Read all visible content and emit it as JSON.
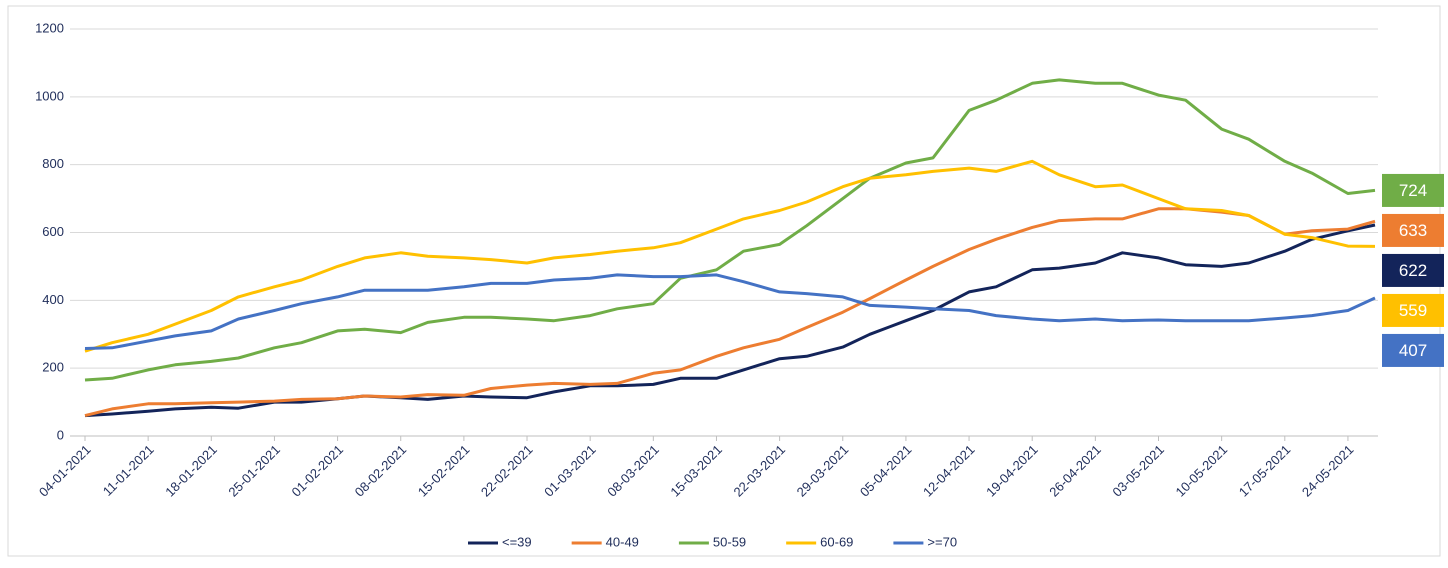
{
  "chart_data": {
    "type": "line",
    "x": [
      "04-01-2021",
      "07-01-2021",
      "11-01-2021",
      "14-01-2021",
      "18-01-2021",
      "21-01-2021",
      "25-01-2021",
      "28-01-2021",
      "01-02-2021",
      "04-02-2021",
      "08-02-2021",
      "11-02-2021",
      "15-02-2021",
      "18-02-2021",
      "22-02-2021",
      "25-02-2021",
      "01-03-2021",
      "04-03-2021",
      "08-03-2021",
      "11-03-2021",
      "15-03-2021",
      "18-03-2021",
      "22-03-2021",
      "25-03-2021",
      "29-03-2021",
      "01-04-2021",
      "05-04-2021",
      "08-04-2021",
      "12-04-2021",
      "15-04-2021",
      "19-04-2021",
      "22-04-2021",
      "26-04-2021",
      "29-04-2021",
      "03-05-2021",
      "06-05-2021",
      "10-05-2021",
      "13-05-2021",
      "17-05-2021",
      "20-05-2021",
      "24-05-2021",
      "27-05-2021"
    ],
    "series": [
      {
        "name": "<=39",
        "color": "#13245a",
        "values": [
          60,
          65,
          73,
          80,
          85,
          82,
          100,
          100,
          110,
          118,
          113,
          108,
          118,
          115,
          113,
          130,
          148,
          148,
          152,
          170,
          170,
          195,
          228,
          235,
          262,
          300,
          340,
          370,
          425,
          440,
          490,
          495,
          510,
          540,
          525,
          505,
          500,
          510,
          545,
          580,
          605,
          622
        ]
      },
      {
        "name": "40-49",
        "color": "#ed7d31",
        "values": [
          60,
          80,
          95,
          95,
          98,
          100,
          103,
          108,
          110,
          118,
          115,
          122,
          120,
          140,
          150,
          155,
          152,
          155,
          185,
          195,
          235,
          260,
          285,
          320,
          365,
          405,
          460,
          500,
          550,
          580,
          615,
          635,
          640,
          640,
          670,
          670,
          660,
          650,
          595,
          605,
          610,
          633
        ]
      },
      {
        "name": "50-59",
        "color": "#70ad47",
        "values": [
          165,
          170,
          195,
          210,
          220,
          230,
          260,
          275,
          310,
          315,
          305,
          335,
          350,
          350,
          345,
          340,
          355,
          375,
          390,
          465,
          490,
          545,
          565,
          620,
          700,
          760,
          805,
          820,
          960,
          990,
          1040,
          1050,
          1040,
          1040,
          1005,
          990,
          905,
          875,
          810,
          775,
          715,
          724
        ]
      },
      {
        "name": "60-69",
        "color": "#ffc000",
        "values": [
          250,
          275,
          300,
          330,
          370,
          410,
          440,
          460,
          500,
          525,
          540,
          530,
          525,
          520,
          510,
          525,
          535,
          545,
          555,
          570,
          610,
          640,
          665,
          690,
          735,
          760,
          770,
          780,
          790,
          780,
          810,
          770,
          735,
          740,
          700,
          670,
          665,
          650,
          595,
          585,
          560,
          559
        ]
      },
      {
        "name": ">=70",
        "color": "#4472c4",
        "values": [
          258,
          260,
          280,
          295,
          310,
          345,
          370,
          390,
          410,
          430,
          430,
          430,
          440,
          450,
          450,
          460,
          465,
          475,
          470,
          470,
          475,
          455,
          425,
          420,
          410,
          385,
          380,
          375,
          370,
          355,
          345,
          340,
          345,
          340,
          342,
          340,
          340,
          340,
          348,
          355,
          370,
          407
        ]
      }
    ],
    "xlim": [
      "04-01-2021",
      "27-05-2021"
    ],
    "xticks": [
      "04-01-2021",
      "11-01-2021",
      "18-01-2021",
      "25-01-2021",
      "01-02-2021",
      "08-02-2021",
      "15-02-2021",
      "22-02-2021",
      "01-03-2021",
      "08-03-2021",
      "15-03-2021",
      "22-03-2021",
      "29-03-2021",
      "05-04-2021",
      "12-04-2021",
      "19-04-2021",
      "26-04-2021",
      "03-05-2021",
      "10-05-2021",
      "17-05-2021",
      "24-05-2021"
    ],
    "ylim": [
      0,
      1200
    ],
    "yticks": [
      0,
      200,
      400,
      600,
      800,
      1000,
      1200
    ],
    "grid": true,
    "legend": "bottom"
  }
}
